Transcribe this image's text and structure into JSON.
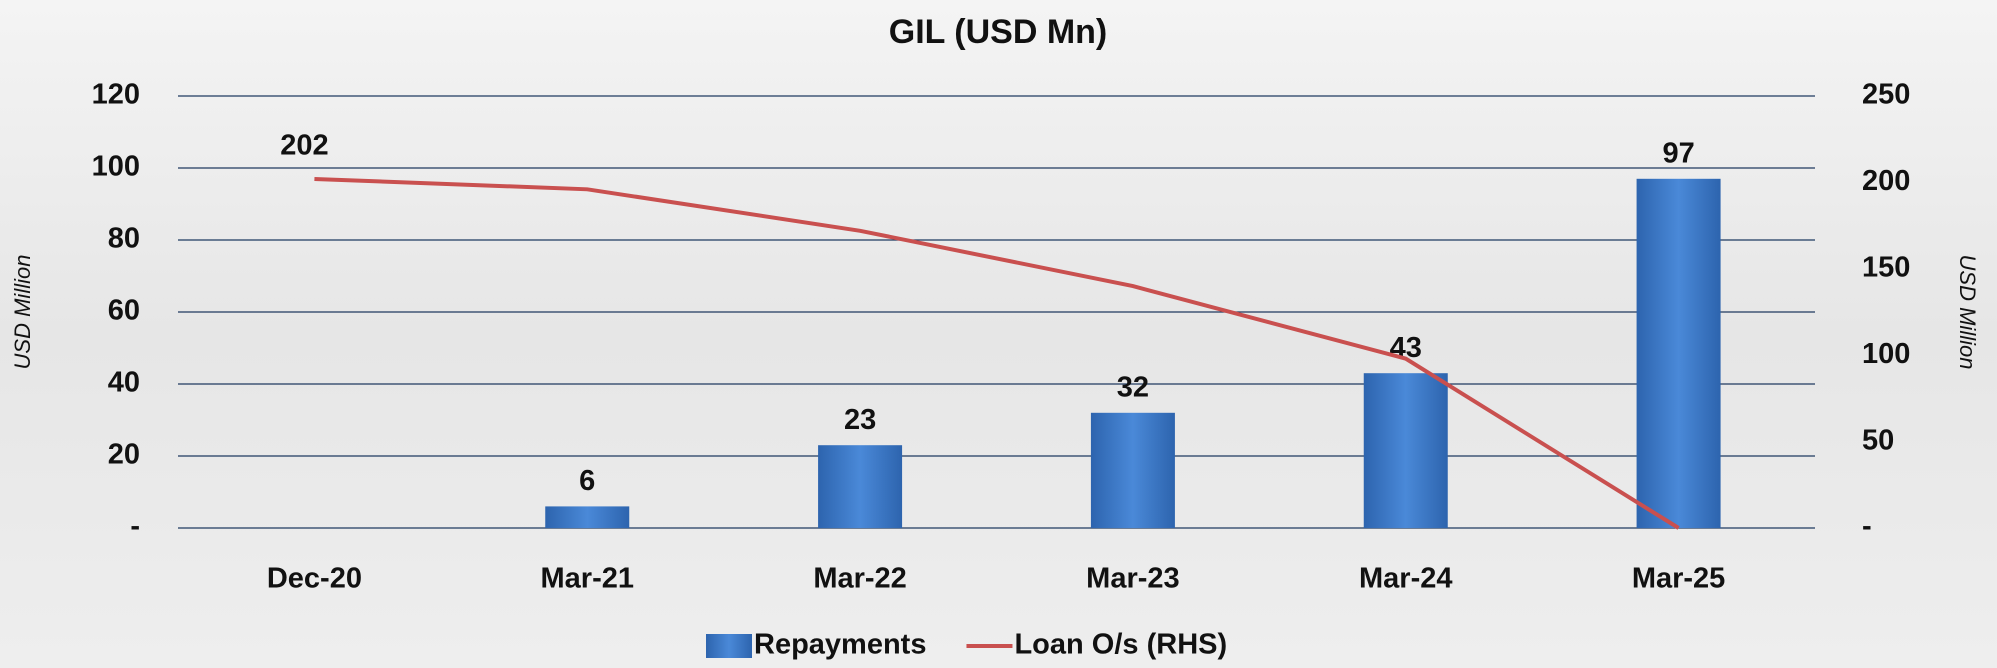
{
  "chart_data": {
    "type": "bar_line",
    "title": "GIL (USD Mn)",
    "categories": [
      "Dec-20",
      "Mar-21",
      "Mar-22",
      "Mar-23",
      "Mar-24",
      "Mar-25"
    ],
    "series": [
      {
        "name": "Repayments",
        "type": "bar",
        "color": "#3a77c6",
        "values": [
          null,
          6,
          23,
          32,
          43,
          97
        ],
        "value_labels": [
          null,
          "6",
          "23",
          "32",
          "43",
          "97"
        ]
      },
      {
        "name": "Loan O/s (RHS)",
        "type": "line",
        "axis": "y2",
        "color": "#c9504f",
        "values": [
          202,
          196,
          172,
          140,
          98,
          0
        ],
        "value_labels": [
          "202",
          null,
          null,
          null,
          null,
          null
        ]
      }
    ],
    "ylabel": "USD Million",
    "y2label": "USD Million",
    "ylim": [
      0,
      120
    ],
    "yticks": [
      {
        "value": 0,
        "label": "-"
      },
      20,
      40,
      60,
      80,
      100,
      120
    ],
    "y2lim": [
      0,
      250
    ],
    "y2ticks": [
      {
        "value": 0,
        "label": "-"
      },
      50,
      100,
      150,
      200,
      250
    ],
    "grid": true,
    "legend": "bottom"
  }
}
